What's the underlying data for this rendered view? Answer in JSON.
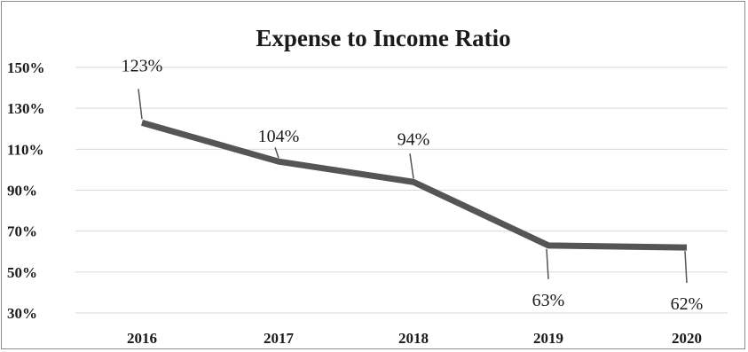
{
  "chart_data": {
    "type": "line",
    "title": "Expense to Income Ratio",
    "xlabel": "",
    "ylabel": "",
    "categories": [
      "2016",
      "2017",
      "2018",
      "2019",
      "2020"
    ],
    "series": [
      {
        "values": [
          123,
          104,
          94,
          63,
          62
        ],
        "data_labels": [
          "123%",
          "104%",
          "94%",
          "63%",
          "62%"
        ]
      }
    ],
    "ylim": [
      30,
      150
    ],
    "y_ticks": [
      30,
      50,
      70,
      90,
      110,
      130,
      150
    ],
    "y_tick_labels": [
      "30%",
      "50%",
      "70%",
      "90%",
      "110%",
      "130%",
      "150%"
    ],
    "grid": true,
    "legend": "none",
    "colors": {
      "line": "#555555",
      "grid": "#d9d9d9",
      "text": "#1a1a1a",
      "leader": "#555555"
    }
  }
}
